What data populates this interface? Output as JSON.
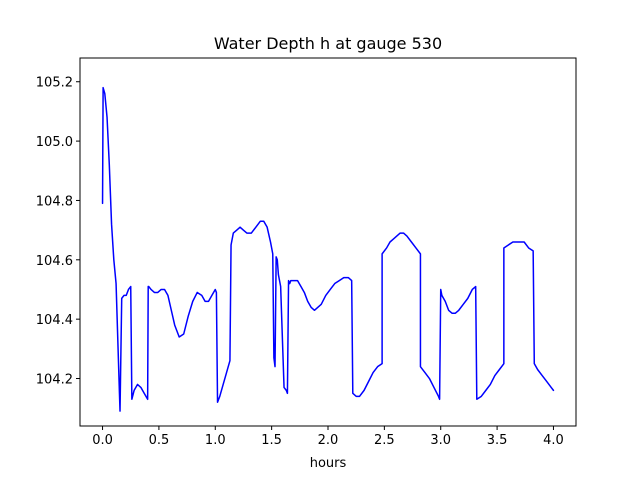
{
  "chart_data": {
    "type": "line",
    "title": "Water Depth h at gauge 530",
    "xlabel": "hours",
    "ylabel": "",
    "xlim": [
      -0.2,
      4.2
    ],
    "ylim": [
      104.04,
      105.28
    ],
    "x_ticks": [
      0.0,
      0.5,
      1.0,
      1.5,
      2.0,
      2.5,
      3.0,
      3.5,
      4.0
    ],
    "x_tick_labels": [
      "0.0",
      "0.5",
      "1.0",
      "1.5",
      "2.0",
      "2.5",
      "3.0",
      "3.5",
      "4.0"
    ],
    "y_ticks": [
      104.2,
      104.4,
      104.6,
      104.8,
      105.0,
      105.2
    ],
    "y_tick_labels": [
      "104.2",
      "104.4",
      "104.6",
      "104.8",
      "105.0",
      "105.2"
    ],
    "grid": false,
    "series": [
      {
        "color": "#0000ff",
        "x": [
          0.0,
          0.005,
          0.02,
          0.04,
          0.06,
          0.08,
          0.1,
          0.12,
          0.15,
          0.155,
          0.17,
          0.17,
          0.19,
          0.21,
          0.23,
          0.25,
          0.26,
          0.26,
          0.28,
          0.31,
          0.34,
          0.37,
          0.4,
          0.405,
          0.41,
          0.43,
          0.46,
          0.49,
          0.52,
          0.55,
          0.58,
          0.61,
          0.64,
          0.68,
          0.72,
          0.76,
          0.8,
          0.84,
          0.88,
          0.91,
          0.94,
          0.97,
          1.0,
          1.01,
          1.02,
          1.04,
          1.07,
          1.1,
          1.13,
          1.14,
          1.16,
          1.19,
          1.22,
          1.25,
          1.28,
          1.32,
          1.36,
          1.4,
          1.43,
          1.46,
          1.49,
          1.51,
          1.52,
          1.53,
          1.54,
          1.55,
          1.56,
          1.58,
          1.61,
          1.63,
          1.64,
          1.65,
          1.66,
          1.67,
          1.7,
          1.73,
          1.76,
          1.79,
          1.82,
          1.85,
          1.88,
          1.91,
          1.94,
          1.98,
          2.02,
          2.06,
          2.1,
          2.14,
          2.18,
          2.21,
          2.22,
          2.25,
          2.28,
          2.32,
          2.36,
          2.4,
          2.44,
          2.48,
          2.48,
          2.52,
          2.55,
          2.58,
          2.61,
          2.64,
          2.67,
          2.7,
          2.74,
          2.78,
          2.82,
          2.82,
          2.86,
          2.9,
          2.94,
          2.98,
          2.99,
          3.0,
          3.01,
          3.04,
          3.07,
          3.1,
          3.13,
          3.16,
          3.2,
          3.24,
          3.28,
          3.31,
          3.32,
          3.36,
          3.4,
          3.44,
          3.48,
          3.52,
          3.56,
          3.56,
          3.6,
          3.64,
          3.67,
          3.7,
          3.74,
          3.78,
          3.82,
          3.83,
          3.86,
          3.9,
          3.94,
          3.98,
          4.0
        ],
        "y": [
          104.79,
          105.18,
          105.16,
          105.08,
          104.92,
          104.72,
          104.6,
          104.52,
          104.15,
          104.09,
          104.47,
          104.47,
          104.48,
          104.48,
          104.5,
          104.51,
          104.13,
          104.13,
          104.16,
          104.18,
          104.17,
          104.15,
          104.13,
          104.51,
          104.51,
          104.5,
          104.49,
          104.49,
          104.5,
          104.5,
          104.48,
          104.43,
          104.38,
          104.34,
          104.35,
          104.41,
          104.46,
          104.49,
          104.48,
          104.46,
          104.46,
          104.48,
          104.5,
          104.49,
          104.12,
          104.14,
          104.18,
          104.22,
          104.26,
          104.65,
          104.69,
          104.7,
          104.71,
          104.7,
          104.69,
          104.69,
          104.71,
          104.73,
          104.73,
          104.71,
          104.66,
          104.62,
          104.27,
          104.24,
          104.61,
          104.6,
          104.55,
          104.51,
          104.17,
          104.16,
          104.15,
          104.53,
          104.52,
          104.53,
          104.53,
          104.53,
          104.51,
          104.49,
          104.46,
          104.44,
          104.43,
          104.44,
          104.45,
          104.48,
          104.5,
          104.52,
          104.53,
          104.54,
          104.54,
          104.53,
          104.15,
          104.14,
          104.14,
          104.16,
          104.19,
          104.22,
          104.24,
          104.25,
          104.62,
          104.64,
          104.66,
          104.67,
          104.68,
          104.69,
          104.69,
          104.68,
          104.66,
          104.64,
          104.62,
          104.24,
          104.22,
          104.2,
          104.17,
          104.14,
          104.13,
          104.5,
          104.48,
          104.46,
          104.43,
          104.42,
          104.42,
          104.43,
          104.45,
          104.47,
          104.5,
          104.51,
          104.13,
          104.14,
          104.16,
          104.18,
          104.21,
          104.23,
          104.25,
          104.64,
          104.65,
          104.66,
          104.66,
          104.66,
          104.66,
          104.64,
          104.63,
          104.25,
          104.23,
          104.21,
          104.19,
          104.17,
          104.16
        ]
      }
    ]
  }
}
